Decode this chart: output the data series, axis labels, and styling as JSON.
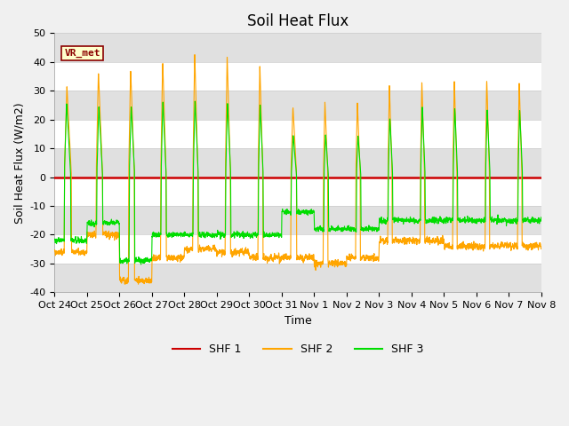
{
  "title": "Soil Heat Flux",
  "xlabel": "Time",
  "ylabel": "Soil Heat Flux (W/m2)",
  "ylim": [
    -40,
    50
  ],
  "yticks": [
    -40,
    -30,
    -20,
    -10,
    0,
    10,
    20,
    30,
    40,
    50
  ],
  "x_labels": [
    "Oct 24",
    "Oct 25",
    "Oct 26",
    "Oct 27",
    "Oct 28",
    "Oct 29",
    "Oct 30",
    "Oct 31",
    "Nov 1",
    "Nov 2",
    "Nov 3",
    "Nov 4",
    "Nov 5",
    "Nov 6",
    "Nov 7",
    "Nov 8"
  ],
  "n_days": 15,
  "color_shf1": "#cc0000",
  "color_shf2": "#ffa500",
  "color_shf3": "#00dd00",
  "background_color": "#f0f0f0",
  "plot_bg_color": "#ffffff",
  "band_color": "#e0e0e0",
  "vr_met_box_color": "#ffffcc",
  "vr_met_border_color": "#8b0000",
  "title_fontsize": 12,
  "label_fontsize": 9,
  "tick_fontsize": 8
}
